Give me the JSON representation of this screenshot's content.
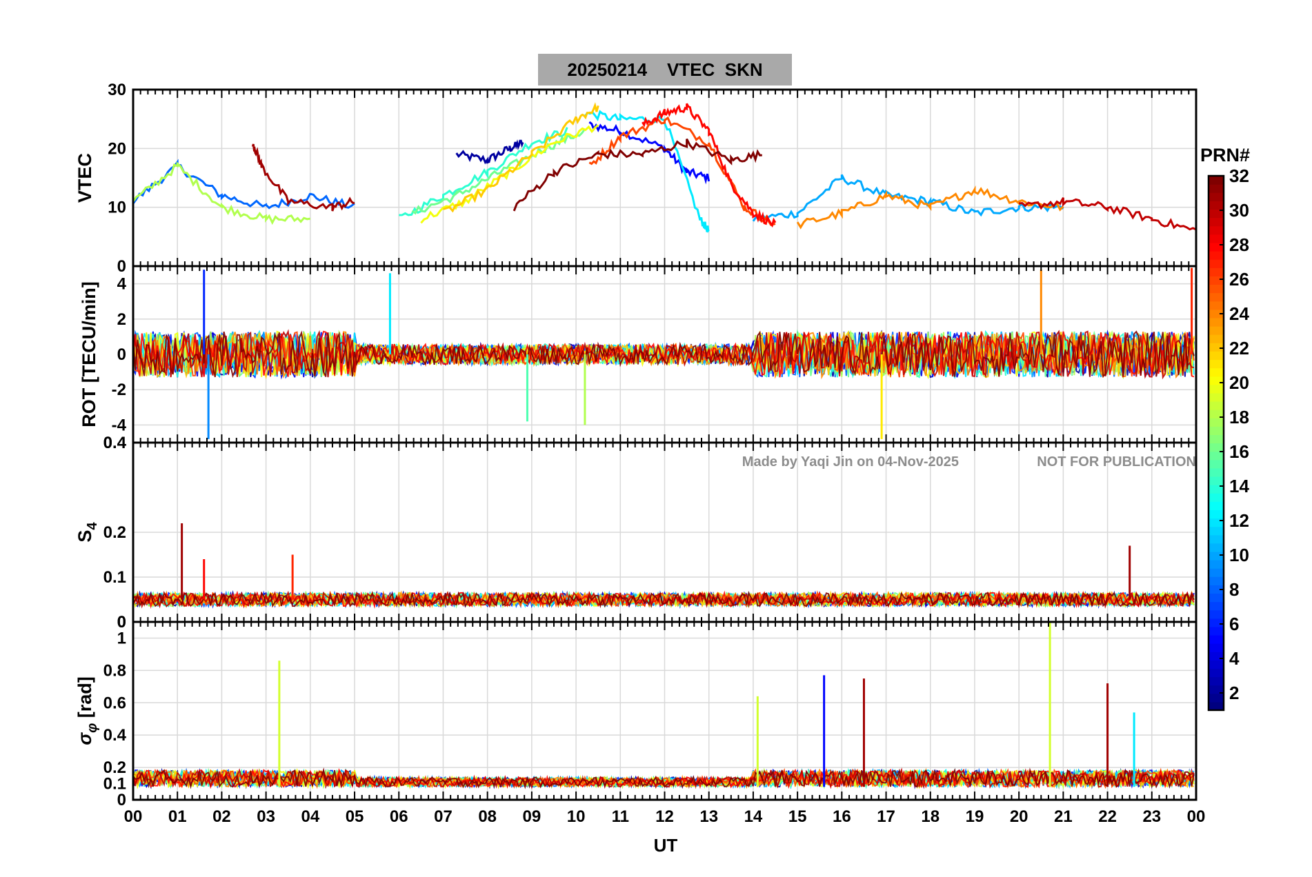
{
  "title": {
    "date": "20250214",
    "quantity": "VTEC",
    "station": "SKN"
  },
  "watermark": {
    "made_by": "Made by Yaqi Jin on 04-Nov-2025",
    "notice": "NOT FOR PUBLICATION"
  },
  "colorbar": {
    "label": "PRN#",
    "min": 1,
    "max": 32,
    "ticks": [
      "2",
      "4",
      "6",
      "8",
      "10",
      "12",
      "14",
      "16",
      "18",
      "20",
      "22",
      "24",
      "26",
      "28",
      "30",
      "32"
    ],
    "colormap": "jet"
  },
  "chart_data": [
    {
      "panel": "vtec",
      "type": "line",
      "ylabel": "VTEC",
      "ylim": [
        0,
        30
      ],
      "yticks": [
        "10",
        "20",
        "30"
      ],
      "series": [
        {
          "prn": 2,
          "x": [
            7.3,
            8.0,
            8.5,
            8.8
          ],
          "y": [
            19,
            18,
            20,
            21
          ]
        },
        {
          "prn": 5,
          "x": [
            10.3,
            11.0,
            12.0,
            12.5,
            13.0
          ],
          "y": [
            24,
            23,
            20,
            16,
            15
          ]
        },
        {
          "prn": 8,
          "x": [
            0.0,
            1.0,
            2.0,
            3.0,
            4.0,
            5.0
          ],
          "y": [
            11,
            17,
            12,
            10,
            12,
            10
          ]
        },
        {
          "prn": 10,
          "x": [
            14.0,
            15.0,
            16.0,
            17.0,
            18.0,
            19.0,
            20.0,
            21.0
          ],
          "y": [
            8,
            9,
            15,
            12,
            11,
            9,
            10,
            10
          ]
        },
        {
          "prn": 12,
          "x": [
            10.2,
            11.0,
            12.0,
            12.8,
            13.0
          ],
          "y": [
            26,
            25,
            25,
            8,
            6
          ]
        },
        {
          "prn": 14,
          "x": [
            6.0,
            7.0,
            8.0,
            9.0,
            9.8
          ],
          "y": [
            8,
            12,
            16,
            21,
            23
          ]
        },
        {
          "prn": 16,
          "x": [
            6.3,
            7.3,
            8.3,
            9.3,
            10.2
          ],
          "y": [
            9,
            12,
            16,
            20,
            23
          ]
        },
        {
          "prn": 18,
          "x": [
            0.0,
            1.0,
            2.0,
            3.0,
            4.0
          ],
          "y": [
            11,
            17,
            10,
            8,
            8
          ]
        },
        {
          "prn": 20,
          "x": [
            6.5,
            7.5,
            8.5,
            9.5,
            10.5
          ],
          "y": [
            8,
            11,
            16,
            21,
            24
          ]
        },
        {
          "prn": 22,
          "x": [
            7.0,
            8.0,
            9.0,
            10.0,
            10.5
          ],
          "y": [
            9,
            13,
            19,
            25,
            27
          ]
        },
        {
          "prn": 24,
          "x": [
            15.0,
            16.0,
            17.0,
            18.0,
            19.0,
            20.0,
            21.0
          ],
          "y": [
            7,
            9,
            12,
            10,
            13,
            11,
            10
          ]
        },
        {
          "prn": 26,
          "x": [
            10.3,
            11.0,
            12.0,
            13.0,
            13.8,
            14.5
          ],
          "y": [
            17,
            22,
            25,
            21,
            10,
            7
          ]
        },
        {
          "prn": 28,
          "x": [
            11.5,
            12.0,
            12.5,
            13.0,
            13.5,
            14.0,
            14.5
          ],
          "y": [
            24,
            26,
            27,
            23,
            14,
            9,
            7
          ]
        },
        {
          "prn": 30,
          "x": [
            20.0,
            21.0,
            22.0,
            23.0,
            24.0
          ],
          "y": [
            10,
            11,
            10,
            8,
            6
          ]
        },
        {
          "prn": 32,
          "x": [
            8.6,
            9.5,
            10.5,
            11.5,
            12.5,
            13.5,
            14.2
          ],
          "y": [
            10,
            16,
            19,
            19,
            21,
            18,
            19
          ]
        },
        {
          "prn": 31,
          "x": [
            2.7,
            2.9,
            3.5,
            4.5,
            5.0
          ],
          "y": [
            21,
            17,
            11,
            10,
            11
          ]
        }
      ]
    },
    {
      "panel": "rot",
      "type": "line",
      "ylabel": "ROT [TECU/min]",
      "ylim": [
        -5,
        5
      ],
      "yticks": [
        "-4",
        "-2",
        "0",
        "2",
        "4"
      ],
      "description_values": {
        "typical_range": [
          -2,
          2
        ],
        "max_spike": 4.8,
        "min_spike": -4.8
      }
    },
    {
      "panel": "s4",
      "type": "line",
      "ylabel": "S4",
      "ylim": [
        0,
        0.4
      ],
      "yticks": [
        "0",
        "0.1",
        "0.2",
        "0.4"
      ],
      "description_values": {
        "baseline": 0.05,
        "peaks": [
          {
            "x": 1.1,
            "y": 0.22,
            "prn": 31
          },
          {
            "x": 1.6,
            "y": 0.14,
            "prn": 28
          },
          {
            "x": 3.6,
            "y": 0.15,
            "prn": 27
          },
          {
            "x": 22.5,
            "y": 0.17,
            "prn": 31
          }
        ]
      }
    },
    {
      "panel": "sigma_phi",
      "type": "line",
      "ylabel": "σφ [rad]",
      "ylim": [
        0,
        1.1
      ],
      "yticks": [
        "0",
        "0.1",
        "0.2",
        "0.4",
        "0.6",
        "0.8",
        "1"
      ],
      "description_values": {
        "baseline": 0.08,
        "peaks": [
          {
            "x": 3.3,
            "y": 0.86,
            "prn": 19
          },
          {
            "x": 14.1,
            "y": 0.64,
            "prn": 19
          },
          {
            "x": 15.6,
            "y": 0.77,
            "prn": 5
          },
          {
            "x": 16.5,
            "y": 0.75,
            "prn": 31
          },
          {
            "x": 20.7,
            "y": 1.1,
            "prn": 19
          },
          {
            "x": 22.0,
            "y": 0.72,
            "prn": 31
          },
          {
            "x": 22.6,
            "y": 0.54,
            "prn": 12
          }
        ]
      }
    }
  ],
  "xaxis": {
    "label": "UT",
    "ticks": [
      "00",
      "01",
      "02",
      "03",
      "04",
      "05",
      "06",
      "07",
      "08",
      "09",
      "10",
      "11",
      "12",
      "13",
      "14",
      "15",
      "16",
      "17",
      "18",
      "19",
      "20",
      "21",
      "22",
      "23",
      "00"
    ],
    "range": [
      0,
      24
    ]
  },
  "panel_top_labels": {
    "rot_top": "0",
    "s4_top": "0.4",
    "sigma_top": "0"
  }
}
